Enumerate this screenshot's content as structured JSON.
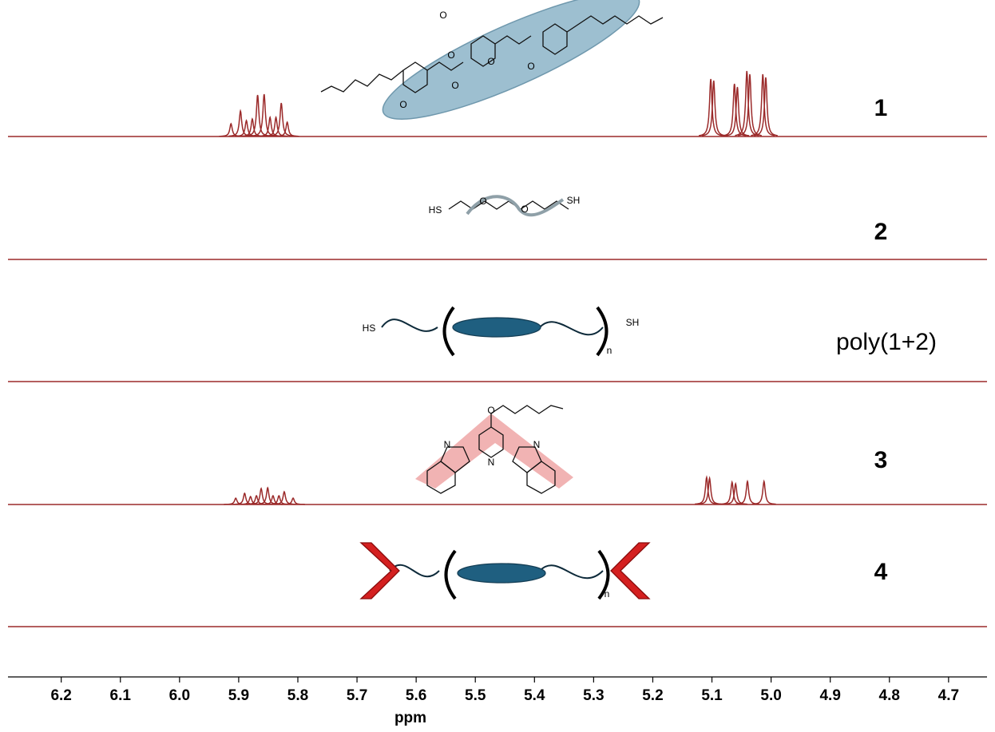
{
  "chart_data": {
    "type": "nmr-stack",
    "x_label": "ppm",
    "xlim": [
      6.29,
      4.635
    ],
    "xticks": [
      6.2,
      6.1,
      {
        "value": 6.0,
        "label": "6.0"
      },
      5.9,
      5.8,
      5.7,
      5.6,
      5.5,
      5.4,
      5.3,
      5.2,
      5.1,
      {
        "value": 5.0,
        "label": "5.0"
      },
      4.9,
      4.8,
      4.7
    ],
    "series": [
      {
        "name": "1",
        "color": "#9b2a2a",
        "x": [
          5.913,
          5.897,
          5.887,
          5.877,
          5.868,
          5.857,
          5.847,
          5.837,
          5.828,
          5.818,
          5.102,
          5.097,
          5.062,
          5.057,
          5.041,
          5.036,
          5.014,
          5.009
        ],
        "values": [
          16,
          32,
          20,
          22,
          52,
          53,
          24,
          24,
          42,
          18,
          72,
          70,
          66,
          62,
          82,
          78,
          78,
          74
        ]
      },
      {
        "name": "2",
        "color": "#9b2a2a",
        "x": [],
        "values": []
      },
      {
        "name": "poly(1+2)",
        "color": "#9b2a2a",
        "x": [],
        "values": []
      },
      {
        "name": "3",
        "color": "#9b2a2a",
        "x": [
          5.905,
          5.89,
          5.88,
          5.87,
          5.862,
          5.851,
          5.842,
          5.832,
          5.823,
          5.808,
          5.109,
          5.104,
          5.066,
          5.06,
          5.04,
          5.012
        ],
        "values": [
          8,
          14,
          10,
          11,
          20,
          21,
          11,
          11,
          16,
          8,
          34,
          33,
          28,
          26,
          29,
          29
        ]
      },
      {
        "name": "4",
        "color": "#9b2a2a",
        "x": [],
        "values": []
      }
    ],
    "annotations": [
      "O",
      "O",
      "O",
      "O",
      "O",
      "O",
      "HS",
      "O",
      "O",
      "SH",
      "HS",
      "SH",
      "n",
      "O",
      "N",
      "N",
      "N",
      "n"
    ]
  }
}
